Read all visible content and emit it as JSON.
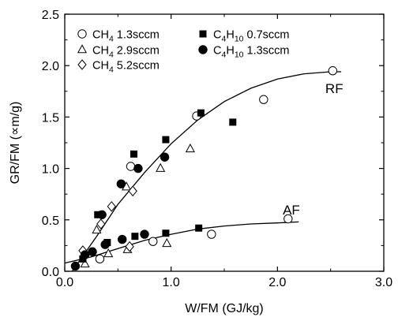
{
  "chart_data": {
    "type": "scatter",
    "xlabel": "W/FM (GJ/kg)",
    "ylabel": "GR/FM (∝m/g)",
    "xlim": [
      0,
      3.0
    ],
    "ylim": [
      0,
      2.5
    ],
    "x_ticks": [
      "0.0",
      "1.0",
      "2.0",
      "3.0"
    ],
    "y_ticks": [
      "0.0",
      "0.5",
      "1.0",
      "1.5",
      "2.0",
      "2.5"
    ],
    "grid": false,
    "legend_position": "top-left",
    "annotations": [
      {
        "text": "RF",
        "x": 2.45,
        "y": 1.78
      },
      {
        "text": "AF",
        "x": 2.05,
        "y": 0.6
      }
    ],
    "series": [
      {
        "name": "CH4 1.3sccm",
        "marker": "open-circle",
        "points": [
          [
            0.33,
            0.12
          ],
          [
            0.62,
            1.02
          ],
          [
            0.83,
            0.29
          ],
          [
            1.24,
            1.51
          ],
          [
            1.38,
            0.36
          ],
          [
            1.87,
            1.67
          ],
          [
            2.1,
            0.51
          ],
          [
            2.52,
            1.95
          ]
        ]
      },
      {
        "name": "CH4 2.9sccm",
        "marker": "open-triangle",
        "points": [
          [
            0.19,
            0.07
          ],
          [
            0.3,
            0.4
          ],
          [
            0.41,
            0.17
          ],
          [
            0.58,
            0.82
          ],
          [
            0.59,
            0.21
          ],
          [
            0.9,
            1.0
          ],
          [
            0.96,
            0.27
          ],
          [
            1.18,
            1.19
          ]
        ]
      },
      {
        "name": "CH4 5.2sccm",
        "marker": "open-diamond",
        "points": [
          [
            0.17,
            0.2
          ],
          [
            0.34,
            0.46
          ],
          [
            0.44,
            0.63
          ],
          [
            0.64,
            0.78
          ],
          [
            0.61,
            0.24
          ]
        ]
      },
      {
        "name": "C4H10 0.7sccm",
        "marker": "filled-square",
        "points": [
          [
            0.17,
            0.12
          ],
          [
            0.31,
            0.55
          ],
          [
            0.4,
            0.28
          ],
          [
            0.65,
            1.14
          ],
          [
            0.66,
            0.34
          ],
          [
            0.95,
            1.28
          ],
          [
            0.95,
            0.37
          ],
          [
            1.28,
            1.54
          ],
          [
            1.26,
            0.42
          ],
          [
            1.58,
            1.45
          ]
        ]
      },
      {
        "name": "C4H10 1.3sccm",
        "marker": "filled-circle",
        "points": [
          [
            0.1,
            0.05
          ],
          [
            0.19,
            0.16
          ],
          [
            0.26,
            0.19
          ],
          [
            0.35,
            0.55
          ],
          [
            0.38,
            0.26
          ],
          [
            0.53,
            0.85
          ],
          [
            0.54,
            0.31
          ],
          [
            0.69,
            1.0
          ],
          [
            0.75,
            0.36
          ],
          [
            0.94,
            1.11
          ]
        ]
      }
    ],
    "fit_curves": [
      {
        "label": "RF",
        "points": [
          [
            0.07,
            0.0
          ],
          [
            0.3,
            0.34
          ],
          [
            0.5,
            0.65
          ],
          [
            0.75,
            0.96
          ],
          [
            1.0,
            1.24
          ],
          [
            1.25,
            1.47
          ],
          [
            1.5,
            1.65
          ],
          [
            1.75,
            1.78
          ],
          [
            2.0,
            1.87
          ],
          [
            2.25,
            1.92
          ],
          [
            2.5,
            1.94
          ],
          [
            2.6,
            1.94
          ]
        ]
      },
      {
        "label": "AF",
        "points": [
          [
            0.0,
            0.08
          ],
          [
            0.25,
            0.14
          ],
          [
            0.5,
            0.22
          ],
          [
            0.75,
            0.3
          ],
          [
            1.0,
            0.36
          ],
          [
            1.25,
            0.41
          ],
          [
            1.5,
            0.44
          ],
          [
            1.75,
            0.46
          ],
          [
            2.0,
            0.47
          ],
          [
            2.2,
            0.48
          ]
        ]
      }
    ]
  },
  "legend": {
    "entries": [
      {
        "marker": "open-circle",
        "formula": "CH",
        "sub": "4",
        "formula_tail": "",
        "rate": "1.3sccm"
      },
      {
        "marker": "open-triangle",
        "formula": "CH",
        "sub": "4",
        "formula_tail": "",
        "rate": "2.9sccm"
      },
      {
        "marker": "open-diamond",
        "formula": "CH",
        "sub": "4",
        "formula_tail": "",
        "rate": "5.2sccm"
      },
      {
        "marker": "filled-square",
        "formula": "C",
        "sub": "4",
        "formula_tail": "H",
        "sub2": "10",
        "rate": "0.7sccm"
      },
      {
        "marker": "filled-circle",
        "formula": "C",
        "sub": "4",
        "formula_tail": "H",
        "sub2": "10",
        "rate": "1.3sccm"
      }
    ]
  }
}
